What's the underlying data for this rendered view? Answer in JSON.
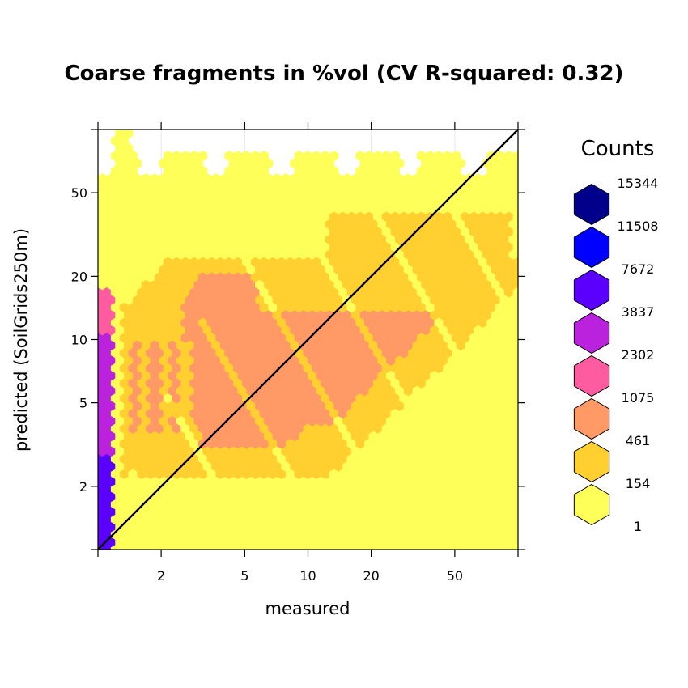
{
  "chart_data": {
    "type": "heatmap",
    "subtype": "hexbin",
    "title": "Coarse fragments in %vol  (CV R-squared: 0.32)",
    "xlabel": "measured",
    "ylabel": "predicted (SoilGrids250m)",
    "x_scale": "log",
    "y_scale": "log",
    "xlim": [
      1,
      100
    ],
    "ylim": [
      1,
      100
    ],
    "x_ticks": [
      {
        "value": 2,
        "label": "2"
      },
      {
        "value": 5,
        "label": "5"
      },
      {
        "value": 10,
        "label": "10"
      },
      {
        "value": 20,
        "label": "20"
      },
      {
        "value": 50,
        "label": "50"
      }
    ],
    "y_ticks": [
      {
        "value": 2,
        "label": "2"
      },
      {
        "value": 5,
        "label": "5"
      },
      {
        "value": 10,
        "label": "10"
      },
      {
        "value": 20,
        "label": "20"
      },
      {
        "value": 50,
        "label": "50"
      }
    ],
    "reference_line": {
      "type": "1:1",
      "from": [
        1,
        1
      ],
      "to": [
        100,
        100
      ],
      "color": "#000000"
    },
    "grid": true,
    "legend": {
      "title": "Counts",
      "placement": "right",
      "breaks": [
        "15344",
        "11508",
        "7672",
        "3837",
        "2302",
        "1075",
        "461",
        "154",
        "1"
      ],
      "colors": [
        "#00008B",
        "#0000FF",
        "#5B00FF",
        "#BB22DD",
        "#FF5BA0",
        "#FF9966",
        "#FFD030",
        "#FFFF5A"
      ]
    },
    "density_colors": {
      "c1": "#FFFF5A",
      "c2": "#FFD030",
      "c3": "#FF9966",
      "c4": "#FF5BA0",
      "c5": "#BB22DD",
      "c6": "#5B00FF",
      "c7": "#0000FF"
    }
  }
}
